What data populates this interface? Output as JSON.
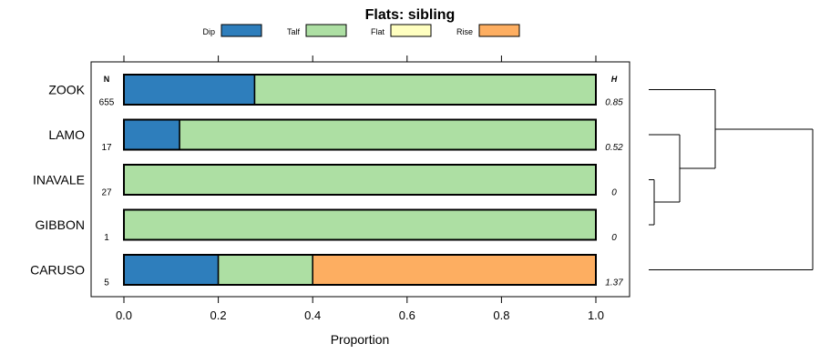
{
  "chart_data": {
    "type": "bar",
    "orientation": "horizontal",
    "stacked": true,
    "title": "Flats: sibling",
    "xlabel": "Proportion",
    "ylabel": "",
    "xlim": [
      0,
      1
    ],
    "x_ticks": [
      "0.0",
      "0.2",
      "0.4",
      "0.6",
      "0.8",
      "1.0"
    ],
    "legend": {
      "placement": "top",
      "items": [
        {
          "name": "Dip",
          "color": "#2e7ebc"
        },
        {
          "name": "Talf",
          "color": "#addfa3"
        },
        {
          "name": "Flat",
          "color": "#ffffc0"
        },
        {
          "name": "Rise",
          "color": "#fdae61"
        }
      ]
    },
    "n_header": "N",
    "h_header": "H",
    "categories": [
      "ZOOK",
      "LAMO",
      "INAVALE",
      "GIBBON",
      "CARUSO"
    ],
    "n_values": [
      "655",
      "17",
      "27",
      "1",
      "5"
    ],
    "h_values": [
      "0.85",
      "0.52",
      "0",
      "0",
      "1.37"
    ],
    "series": [
      {
        "name": "Dip",
        "values": [
          0.277,
          0.118,
          0,
          0,
          0.2
        ]
      },
      {
        "name": "Talf",
        "values": [
          0.723,
          0.882,
          1,
          1,
          0.2
        ]
      },
      {
        "name": "Flat",
        "values": [
          0,
          0,
          0,
          0,
          0
        ]
      },
      {
        "name": "Rise",
        "values": [
          0,
          0,
          0,
          0,
          0.6
        ]
      }
    ],
    "dendrogram": "((((INAVALE,GIBBON),LAMO),ZOOK),CARUSO)"
  }
}
